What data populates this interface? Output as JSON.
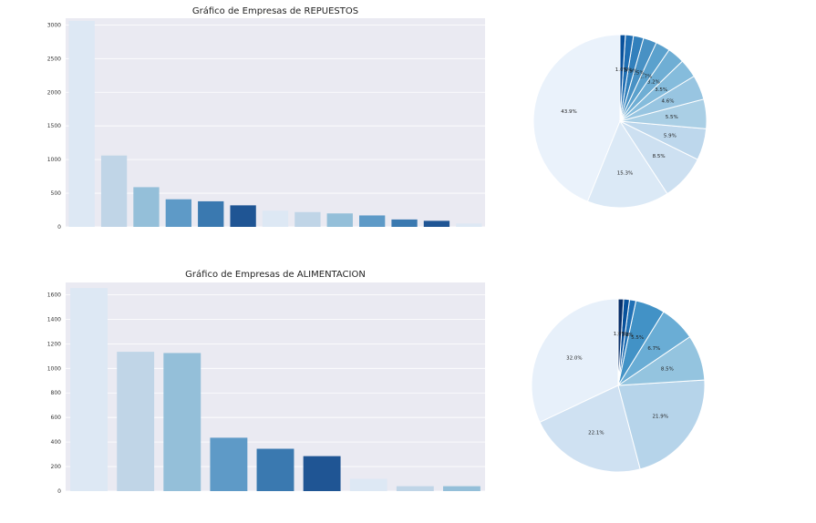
{
  "chart_data": [
    {
      "type": "bar",
      "title": "Gráfico de Empresas de REPUESTOS",
      "xlabel": "",
      "ylabel": "",
      "ylim": [
        0,
        3100
      ],
      "yticks": [
        "0",
        "500",
        "1000",
        "1500",
        "2000",
        "2500",
        "3000"
      ],
      "categories": [
        "",
        "",
        "",
        "",
        "",
        "",
        "",
        "",
        "",
        "",
        "",
        "",
        ""
      ],
      "values": [
        3060,
        1060,
        590,
        410,
        380,
        320,
        240,
        220,
        200,
        170,
        110,
        90,
        50
      ],
      "colors": [
        "#dde8f4",
        "#c0d5e7",
        "#94bfd9",
        "#5e9ac7",
        "#3a79b0",
        "#1f5594",
        "#dde8f4",
        "#c0d5e7",
        "#94bfd9",
        "#5e9ac7",
        "#3a79b0",
        "#1f5594",
        "#dde8f4"
      ],
      "grid": true,
      "background": "#eaeaf2"
    },
    {
      "type": "pie",
      "values": [
        43.9,
        15.3,
        8.5,
        5.9,
        5.5,
        4.6,
        3.5,
        3.2,
        2.7,
        2.5,
        1.9,
        1.5,
        1.0
      ],
      "labels": [
        "43.9%",
        "15.3%",
        "8.5%",
        "5.9%",
        "5.5%",
        "4.6%",
        "3.5%",
        "3.2%",
        "2.7%",
        "2.5%",
        "1.9%",
        "1.5%",
        "1.0%"
      ],
      "colors": [
        "#eaf2fb",
        "#dbe9f6",
        "#cde0f1",
        "#bdd7ec",
        "#aacfe5",
        "#98c5e1",
        "#85bcdc",
        "#6faed4",
        "#5ba1cd",
        "#4891c4",
        "#3280bc",
        "#1f6eb3",
        "#08519c"
      ]
    },
    {
      "type": "bar",
      "title": "Gráfico de Empresas de ALIMENTACION",
      "xlabel": "",
      "ylabel": "",
      "ylim": [
        0,
        1700
      ],
      "yticks": [
        "0",
        "200",
        "400",
        "600",
        "800",
        "1000",
        "1200",
        "1400",
        "1600"
      ],
      "categories": [
        "",
        "",
        "",
        "",
        "",
        "",
        "",
        "",
        ""
      ],
      "values": [
        1655,
        1135,
        1125,
        435,
        345,
        285,
        100,
        40,
        40
      ],
      "colors": [
        "#dde8f4",
        "#c0d5e7",
        "#94bfd9",
        "#5e9ac7",
        "#3a79b0",
        "#1f5594",
        "#dde8f4",
        "#c0d5e7",
        "#94bfd9"
      ],
      "grid": true,
      "background": "#eaeaf2"
    },
    {
      "type": "pie",
      "values": [
        32.0,
        22.1,
        21.9,
        8.5,
        6.7,
        5.5,
        1.2,
        1.1,
        1.0
      ],
      "labels": [
        "32.0%",
        "22.1%",
        "21.9%",
        "8.5%",
        "6.7%",
        "5.5%",
        "1.2%",
        "1.1%",
        "1.0%"
      ],
      "colors": [
        "#e7f0fa",
        "#cfe1f2",
        "#b6d4ea",
        "#94c4df",
        "#6aadd5",
        "#4292c6",
        "#2171b5",
        "#08519c",
        "#08306b"
      ]
    }
  ]
}
